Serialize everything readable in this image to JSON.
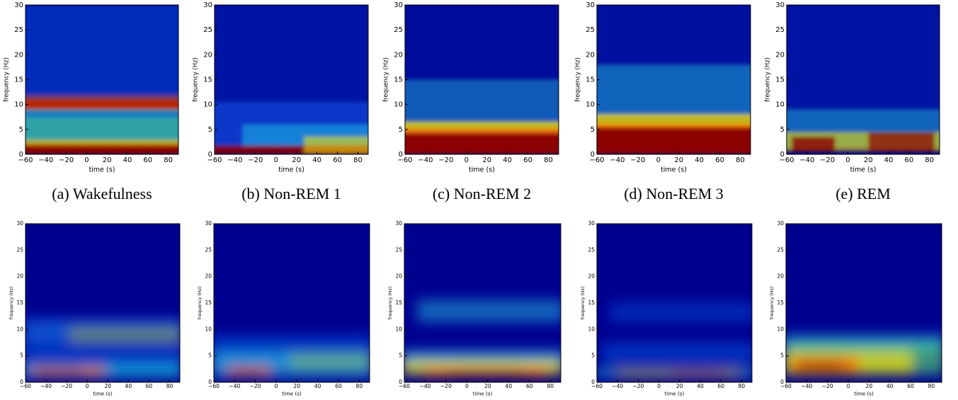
{
  "chart_data": [
    {
      "type": "heatmap",
      "caption": "(a) Wakefulness",
      "xlabel": "time (s)",
      "ylabel": "frequency (Hz)",
      "xlim": [
        -60,
        90
      ],
      "ylim": [
        0,
        30
      ],
      "xticks": [
        {
          "value": -60,
          "label": "−60"
        },
        {
          "value": -40,
          "label": "−40"
        },
        {
          "value": -20,
          "label": "−20"
        },
        0,
        20,
        40,
        60,
        80
      ],
      "yticks": [
        0,
        5,
        10,
        15,
        20,
        25,
        30
      ]
    },
    {
      "type": "heatmap",
      "caption": "(b) Non-REM 1",
      "xlabel": "time (s)",
      "ylabel": "frequency (Hz)",
      "xlim": [
        -60,
        90
      ],
      "ylim": [
        0,
        30
      ],
      "xticks": [
        {
          "value": -60,
          "label": "−60"
        },
        {
          "value": -40,
          "label": "−40"
        },
        {
          "value": -20,
          "label": "−20"
        },
        0,
        20,
        40,
        60,
        80
      ],
      "yticks": [
        0,
        5,
        10,
        15,
        20,
        25,
        30
      ]
    },
    {
      "type": "heatmap",
      "caption": "(c) Non-REM 2",
      "xlabel": "time (s)",
      "ylabel": "frequency (Hz)",
      "xlim": [
        -60,
        90
      ],
      "ylim": [
        0,
        30
      ],
      "xticks": [
        {
          "value": -60,
          "label": "−60"
        },
        {
          "value": -40,
          "label": "−40"
        },
        {
          "value": -20,
          "label": "−20"
        },
        0,
        20,
        40,
        60,
        80
      ],
      "yticks": [
        0,
        5,
        10,
        15,
        20,
        25,
        30
      ]
    },
    {
      "type": "heatmap",
      "caption": "(d) Non-REM 3",
      "xlabel": "time (s)",
      "ylabel": "frequency (Hz)",
      "xlim": [
        -60,
        90
      ],
      "ylim": [
        0,
        30
      ],
      "xticks": [
        {
          "value": -60,
          "label": "−60"
        },
        {
          "value": -40,
          "label": "−40"
        },
        {
          "value": -20,
          "label": "−20"
        },
        0,
        20,
        40,
        60,
        80
      ],
      "yticks": [
        0,
        5,
        10,
        15,
        20,
        25,
        30
      ]
    },
    {
      "type": "heatmap",
      "caption": "(e) REM",
      "xlabel": "time (s)",
      "ylabel": "frequency (Hz)",
      "xlim": [
        -60,
        90
      ],
      "ylim": [
        0,
        30
      ],
      "xticks": [
        {
          "value": -60,
          "label": "−60"
        },
        {
          "value": -40,
          "label": "−40"
        },
        {
          "value": -20,
          "label": "−20"
        },
        0,
        20,
        40,
        60,
        80
      ],
      "yticks": [
        0,
        5,
        10,
        15,
        20,
        25,
        30
      ]
    },
    {
      "type": "heatmap",
      "xlabel": "time (s)",
      "ylabel": "frequency (Hz)",
      "xlim": [
        -60,
        90
      ],
      "ylim": [
        0,
        30
      ],
      "xticks": [
        {
          "value": -60,
          "label": "−60"
        },
        {
          "value": -40,
          "label": "−40"
        },
        {
          "value": -20,
          "label": "−20"
        },
        0,
        20,
        40,
        60,
        80
      ],
      "yticks": [
        0,
        5,
        10,
        15,
        20,
        25,
        30
      ]
    },
    {
      "type": "heatmap",
      "xlabel": "time (s)",
      "ylabel": "frequency (Hz)",
      "xlim": [
        -60,
        90
      ],
      "ylim": [
        0,
        30
      ],
      "xticks": [
        {
          "value": -60,
          "label": "−60"
        },
        {
          "value": -40,
          "label": "−40"
        },
        {
          "value": -20,
          "label": "−20"
        },
        0,
        20,
        40,
        60,
        80
      ],
      "yticks": [
        0,
        5,
        10,
        15,
        20,
        25,
        30
      ]
    },
    {
      "type": "heatmap",
      "xlabel": "time (s)",
      "ylabel": "frequency (Hz)",
      "xlim": [
        -60,
        90
      ],
      "ylim": [
        0,
        30
      ],
      "xticks": [
        {
          "value": -60,
          "label": "−60"
        },
        {
          "value": -40,
          "label": "−40"
        },
        {
          "value": -20,
          "label": "−20"
        },
        0,
        20,
        40,
        60,
        80
      ],
      "yticks": [
        0,
        5,
        10,
        15,
        20,
        25,
        30
      ]
    },
    {
      "type": "heatmap",
      "xlabel": "time (s)",
      "ylabel": "frequency (Hz)",
      "xlim": [
        -60,
        90
      ],
      "ylim": [
        0,
        30
      ],
      "xticks": [
        {
          "value": -60,
          "label": "−60"
        },
        {
          "value": -40,
          "label": "−40"
        },
        {
          "value": -20,
          "label": "−20"
        },
        0,
        20,
        40,
        60,
        80
      ],
      "yticks": [
        0,
        5,
        10,
        15,
        20,
        25,
        30
      ]
    },
    {
      "type": "heatmap",
      "xlabel": "time (s)",
      "ylabel": "frequency (Hz)",
      "xlim": [
        -60,
        90
      ],
      "ylim": [
        0,
        30
      ],
      "xticks": [
        {
          "value": -60,
          "label": "−60"
        },
        {
          "value": -40,
          "label": "−40"
        },
        {
          "value": -20,
          "label": "−20"
        },
        0,
        20,
        40,
        60,
        80
      ],
      "yticks": [
        0,
        5,
        10,
        15,
        20,
        25,
        30
      ]
    }
  ]
}
